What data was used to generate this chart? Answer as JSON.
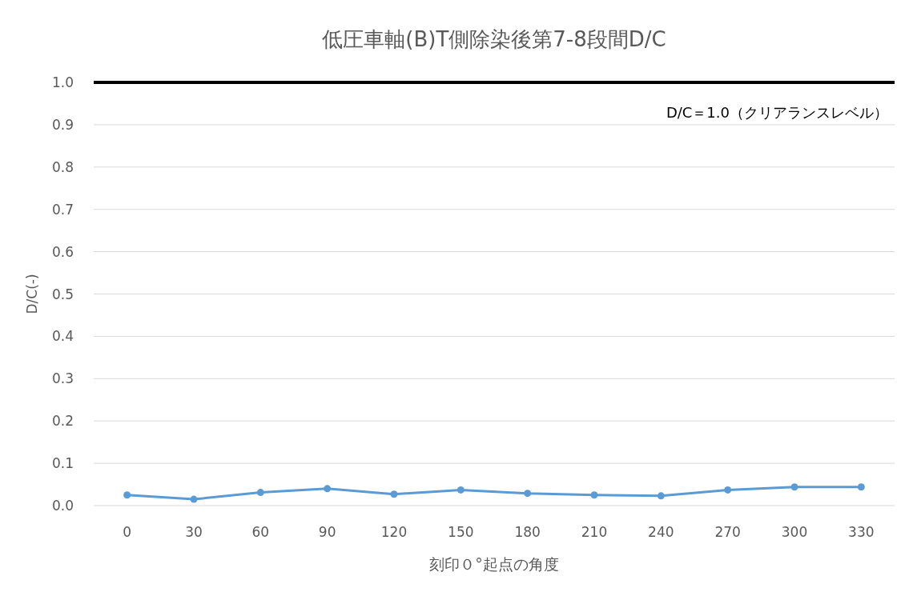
{
  "chart_data": {
    "type": "line",
    "title": "低圧車軸(B)T側除染後第7-8段間D/C",
    "xlabel": "刻印０°起点の角度",
    "ylabel": "D/C(-)",
    "categories": [
      "0",
      "30",
      "60",
      "90",
      "120",
      "150",
      "180",
      "210",
      "240",
      "270",
      "300",
      "330"
    ],
    "series": [
      {
        "color": "#5b9bd5",
        "values": [
          0.025,
          0.015,
          0.031,
          0.04,
          0.027,
          0.037,
          0.029,
          0.025,
          0.023,
          0.037,
          0.044,
          0.044
        ]
      }
    ],
    "ylim": [
      0,
      1.0
    ],
    "yticks": [
      {
        "value": 0,
        "label": "0.0"
      },
      {
        "value": 0.1,
        "label": "0.1"
      },
      {
        "value": 0.2,
        "label": "0.2"
      },
      {
        "value": 0.3,
        "label": "0.3"
      },
      {
        "value": 0.4,
        "label": "0.4"
      },
      {
        "value": 0.5,
        "label": "0.5"
      },
      {
        "value": 0.6,
        "label": "0.6"
      },
      {
        "value": 0.7,
        "label": "0.7"
      },
      {
        "value": 0.8,
        "label": "0.8"
      },
      {
        "value": 0.9,
        "label": "0.9"
      },
      {
        "value": 1.0,
        "label": "1.0"
      }
    ],
    "ref_lines": [
      {
        "axis": "y",
        "value": 1.0,
        "label": "D/C＝1.0（クリアランスレベル）",
        "color": "#000000"
      }
    ],
    "grid": "y",
    "marker": "circle",
    "line_style": "solid"
  }
}
